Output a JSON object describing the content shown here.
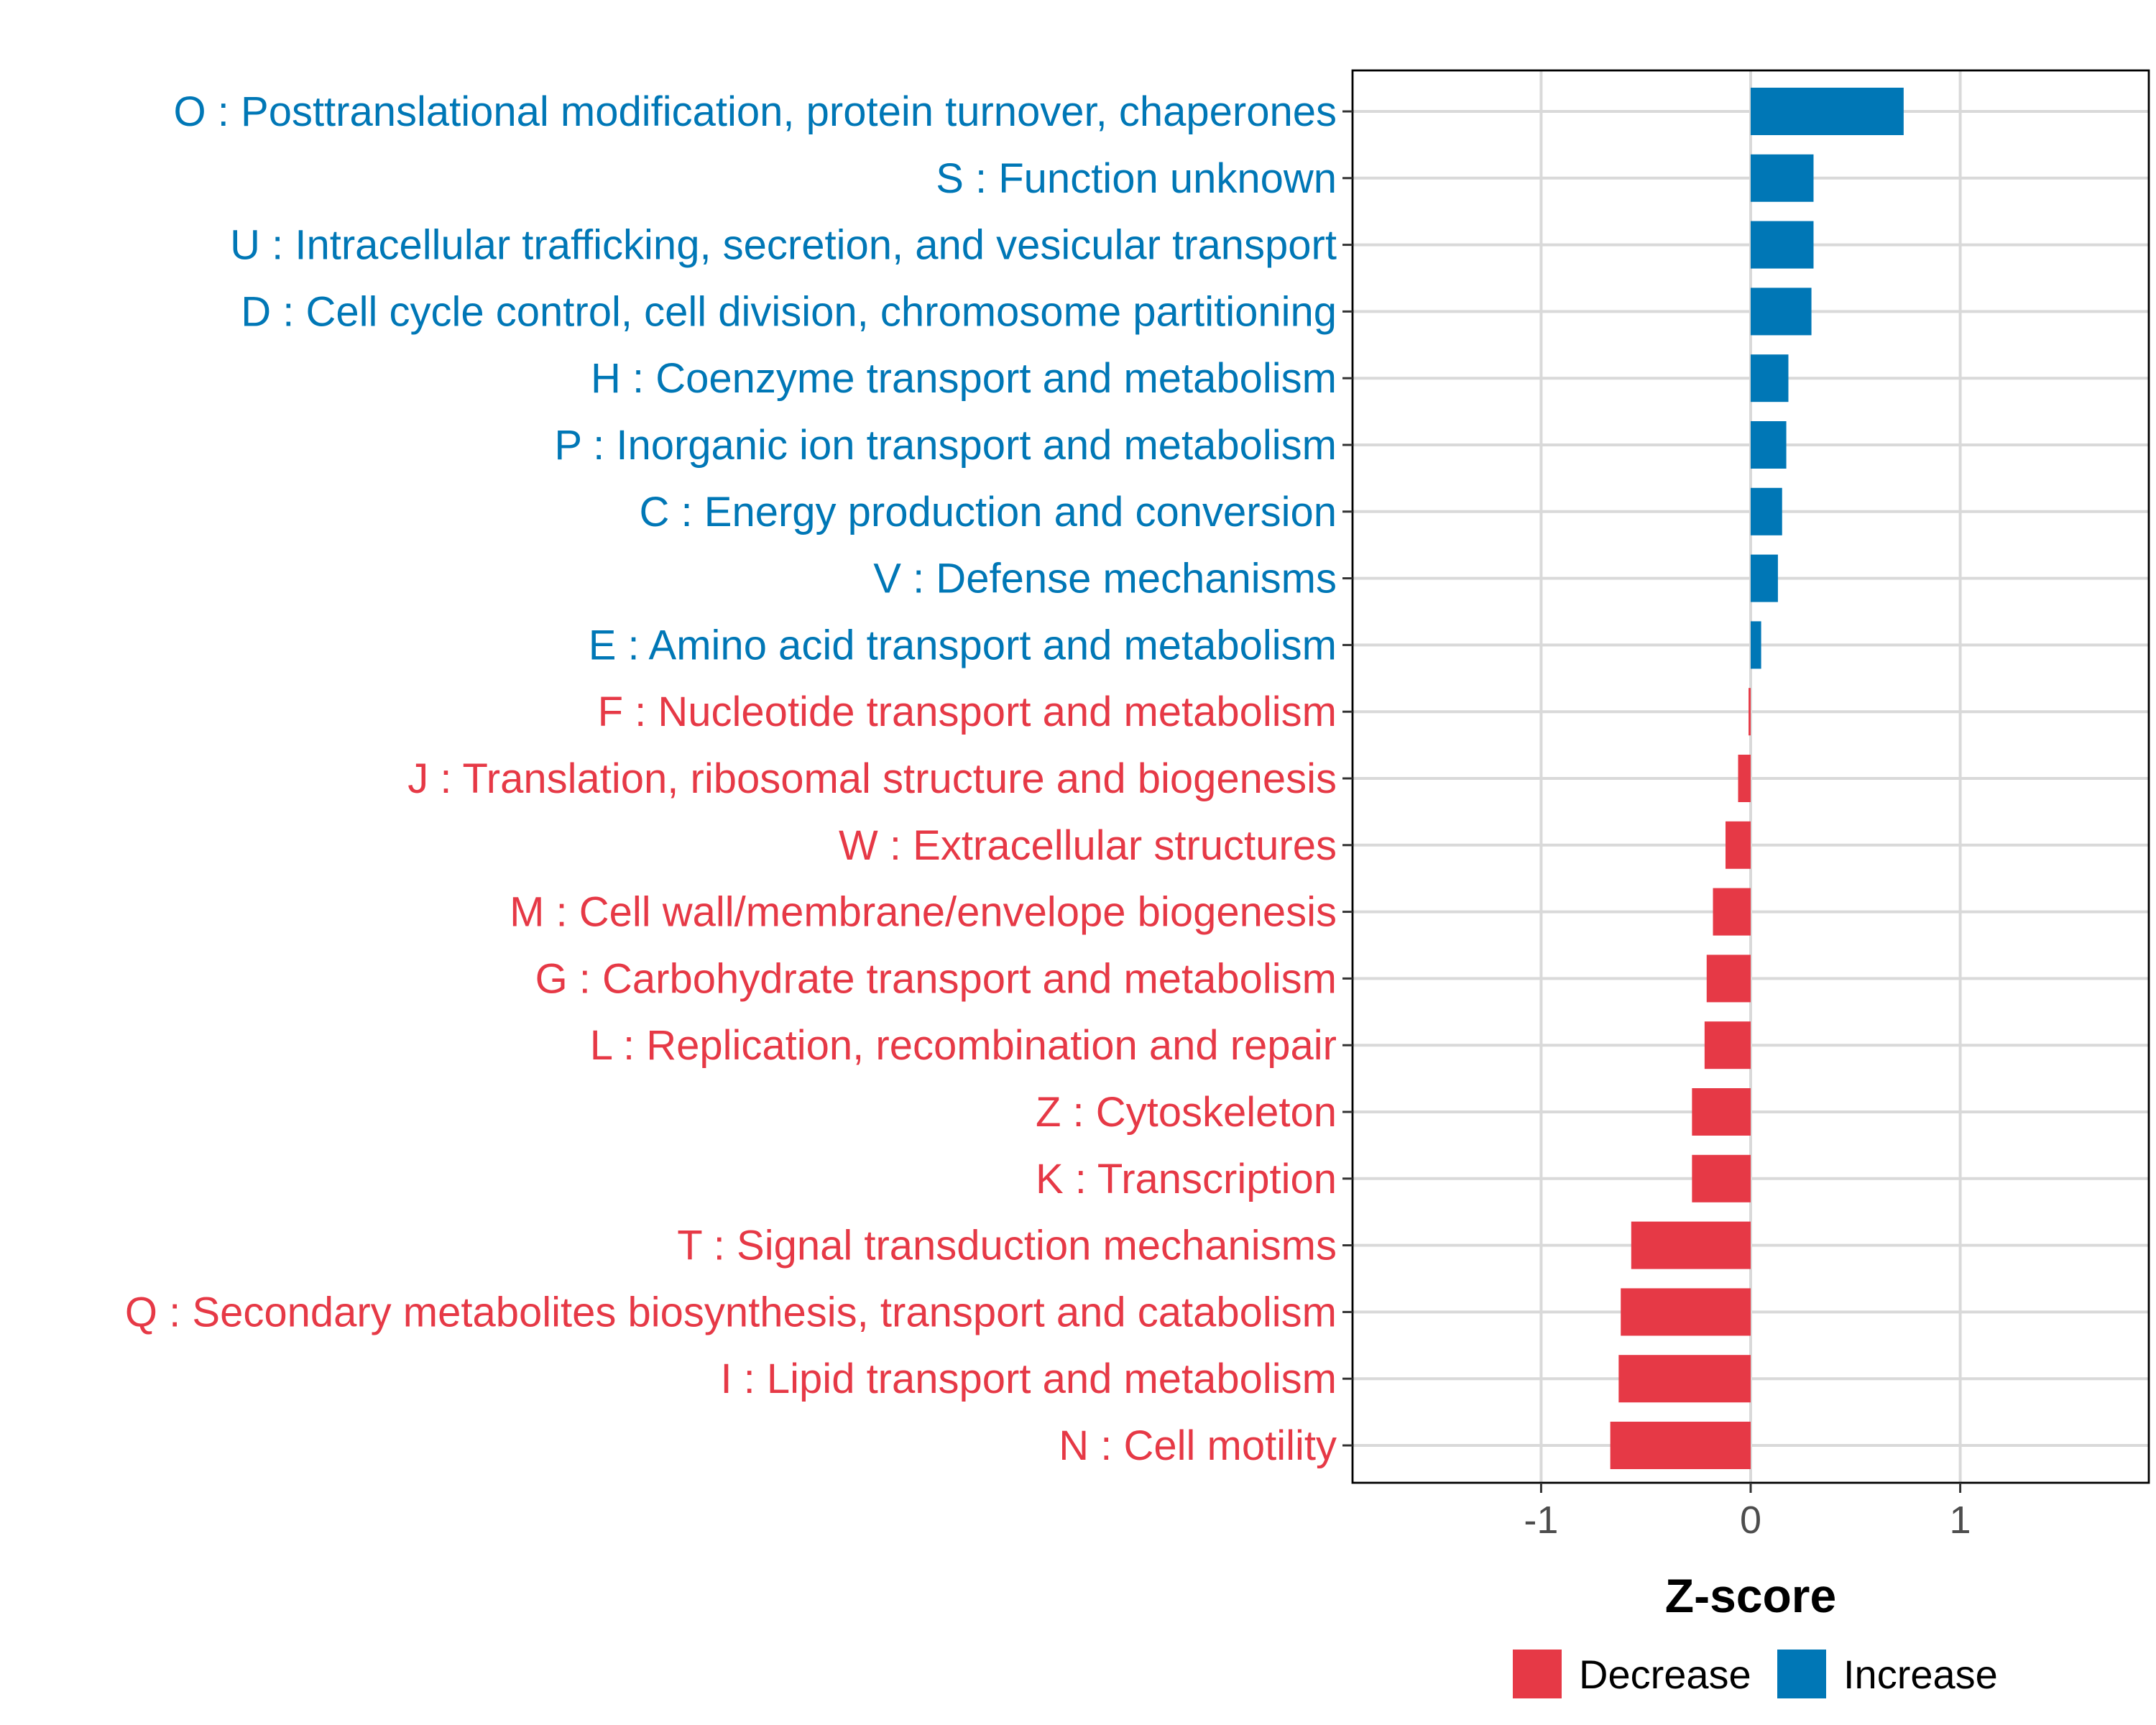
{
  "chart_data": {
    "type": "bar",
    "orientation": "horizontal",
    "title": "",
    "xlabel": "Z-score",
    "ylabel": "",
    "xlim": [
      -1.9,
      1.9
    ],
    "xticks": [
      -1,
      0,
      1
    ],
    "xtick_labels": [
      "-1",
      "0",
      "1"
    ],
    "grid": true,
    "categories": [
      "O : Posttranslational modification, protein turnover, chaperones",
      "S : Function unknown",
      "U : Intracellular trafficking, secretion, and vesicular transport",
      "D : Cell cycle control, cell division, chromosome partitioning",
      "H : Coenzyme transport and metabolism",
      "P : Inorganic ion transport and metabolism",
      "C : Energy production and conversion",
      "V : Defense mechanisms",
      "E : Amino acid transport and metabolism",
      "F : Nucleotide transport and metabolism",
      "J : Translation, ribosomal structure and biogenesis",
      "W : Extracellular structures",
      "M : Cell wall/membrane/envelope biogenesis",
      "G : Carbohydrate transport and metabolism",
      "L : Replication, recombination and repair",
      "Z : Cytoskeleton",
      "K : Transcription",
      "T : Signal transduction mechanisms",
      "Q : Secondary metabolites biosynthesis, transport and catabolism",
      "I : Lipid transport and metabolism",
      "N : Cell motility"
    ],
    "values": [
      0.73,
      0.3,
      0.3,
      0.29,
      0.18,
      0.17,
      0.15,
      0.13,
      0.05,
      -0.01,
      -0.06,
      -0.12,
      -0.18,
      -0.21,
      -0.22,
      -0.28,
      -0.28,
      -0.57,
      -0.62,
      -0.63,
      -0.67
    ],
    "groups": [
      "Increase",
      "Increase",
      "Increase",
      "Increase",
      "Increase",
      "Increase",
      "Increase",
      "Increase",
      "Increase",
      "Decrease",
      "Decrease",
      "Decrease",
      "Decrease",
      "Decrease",
      "Decrease",
      "Decrease",
      "Decrease",
      "Decrease",
      "Decrease",
      "Decrease",
      "Decrease"
    ],
    "legend": {
      "position": "bottom",
      "entries": [
        {
          "name": "Decrease",
          "color": "#E63946"
        },
        {
          "name": "Increase",
          "color": "#0077B6"
        }
      ]
    }
  }
}
